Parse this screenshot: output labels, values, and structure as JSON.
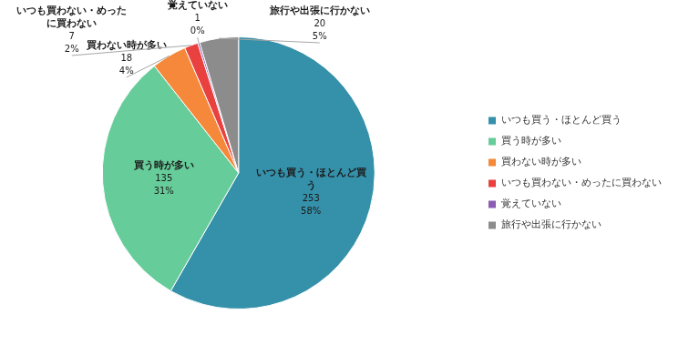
{
  "chart_data": {
    "type": "pie",
    "categories": [
      "いつも買う・ほとんど買う",
      "買う時が多い",
      "買わない時が多い",
      "いつも買わない・めったに買わない",
      "覚えていない",
      "旅行や出張に行かない"
    ],
    "values": [
      253,
      135,
      18,
      7,
      1,
      20
    ],
    "percentages": [
      58,
      31,
      4,
      2,
      0,
      5
    ],
    "percent_labels": [
      "58%",
      "31%",
      "4%",
      "2%",
      "0%",
      "5%"
    ],
    "colors": [
      "#3590aa",
      "#66cc99",
      "#f5883a",
      "#e8413f",
      "#8a5cb3",
      "#8c8c8c"
    ],
    "legend": "right",
    "data_labels": true
  }
}
